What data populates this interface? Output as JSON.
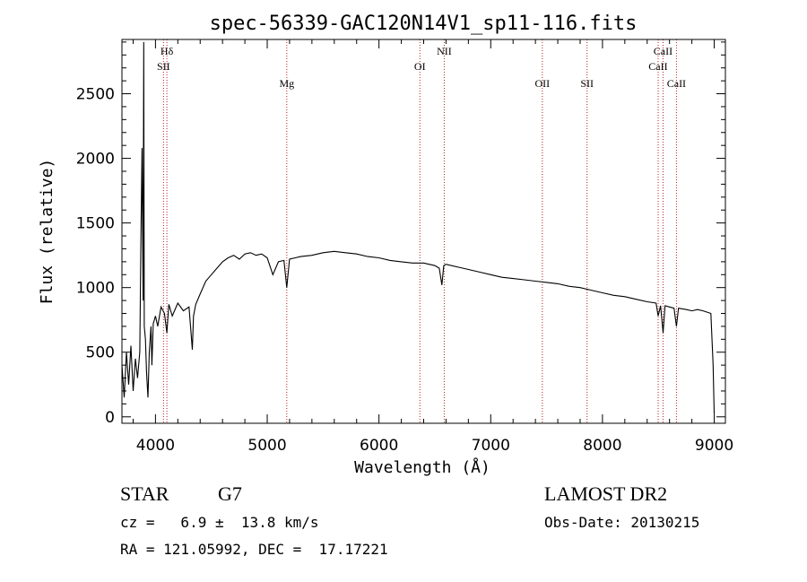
{
  "chart_data": {
    "type": "line",
    "title": "spec-56339-GAC120N14V1_sp11-116.fits",
    "xlabel": "Wavelength (Å)",
    "ylabel": "Flux (relative)",
    "xlim": [
      3700,
      9100
    ],
    "ylim": [
      -50,
      2920
    ],
    "x_ticks": [
      4000,
      5000,
      6000,
      7000,
      8000,
      9000
    ],
    "y_ticks": [
      0,
      500,
      1000,
      1500,
      2000,
      2500
    ],
    "grid": false,
    "line_color": "#000000",
    "marker_color": "#b22222",
    "spectral_lines": [
      {
        "name": "Hδ",
        "wavelength": 4102,
        "row": 0
      },
      {
        "name": "SII",
        "wavelength": 4072,
        "row": 1
      },
      {
        "name": "Mg",
        "wavelength": 5175,
        "row": 2
      },
      {
        "name": "OI",
        "wavelength": 6366,
        "row": 1
      },
      {
        "name": "NII",
        "wavelength": 6584,
        "row": 0
      },
      {
        "name": "OII",
        "wavelength": 7462,
        "row": 2
      },
      {
        "name": "SII",
        "wavelength": 7862,
        "row": 2
      },
      {
        "name": "CaII",
        "wavelength": 8542,
        "row": 0
      },
      {
        "name": "CaII",
        "wavelength": 8498,
        "row": 1
      },
      {
        "name": "CaII",
        "wavelength": 8662,
        "row": 2
      }
    ],
    "series": [
      {
        "x": [
          3700,
          3720,
          3740,
          3760,
          3780,
          3800,
          3820,
          3840,
          3860,
          3870,
          3880,
          3889,
          3895,
          3900,
          3910,
          3920,
          3933,
          3945,
          3960,
          3968,
          3980,
          4000,
          4020,
          4050,
          4080,
          4102,
          4120,
          4150,
          4200,
          4250,
          4300,
          4330,
          4340,
          4360,
          4400,
          4450,
          4500,
          4550,
          4600,
          4650,
          4700,
          4750,
          4800,
          4850,
          4900,
          4950,
          5000,
          5050,
          5100,
          5150,
          5175,
          5200,
          5250,
          5300,
          5400,
          5500,
          5600,
          5700,
          5800,
          5900,
          6000,
          6100,
          6200,
          6300,
          6400,
          6500,
          6540,
          6563,
          6580,
          6600,
          6700,
          6800,
          6900,
          7000,
          7100,
          7200,
          7300,
          7400,
          7500,
          7600,
          7700,
          7800,
          7900,
          8000,
          8100,
          8200,
          8300,
          8400,
          8480,
          8498,
          8520,
          8542,
          8560,
          8600,
          8640,
          8662,
          8680,
          8750,
          8800,
          8850,
          8900,
          8970,
          8990,
          9000
        ],
        "y": [
          400,
          150,
          500,
          250,
          550,
          200,
          450,
          300,
          500,
          1400,
          2080,
          900,
          2900,
          700,
          600,
          350,
          150,
          500,
          700,
          400,
          720,
          780,
          700,
          850,
          800,
          650,
          870,
          780,
          880,
          820,
          850,
          520,
          780,
          870,
          950,
          1050,
          1100,
          1150,
          1200,
          1230,
          1250,
          1220,
          1260,
          1270,
          1250,
          1260,
          1230,
          1100,
          1200,
          1210,
          1000,
          1220,
          1230,
          1240,
          1250,
          1270,
          1280,
          1270,
          1260,
          1240,
          1230,
          1210,
          1200,
          1190,
          1190,
          1170,
          1150,
          1020,
          1170,
          1180,
          1160,
          1140,
          1120,
          1100,
          1080,
          1070,
          1060,
          1050,
          1040,
          1030,
          1010,
          1000,
          980,
          960,
          940,
          930,
          910,
          890,
          880,
          780,
          860,
          650,
          860,
          850,
          840,
          700,
          840,
          830,
          820,
          830,
          820,
          800,
          400,
          20
        ]
      }
    ]
  },
  "info": {
    "object_type": "STAR",
    "subclass": "G7",
    "survey": "LAMOST DR2",
    "redshift": "cz =   6.9 ±  13.8 km/s",
    "obs_date": "Obs-Date: 20130215",
    "coords": "RA = 121.05992, DEC =  17.17221"
  }
}
